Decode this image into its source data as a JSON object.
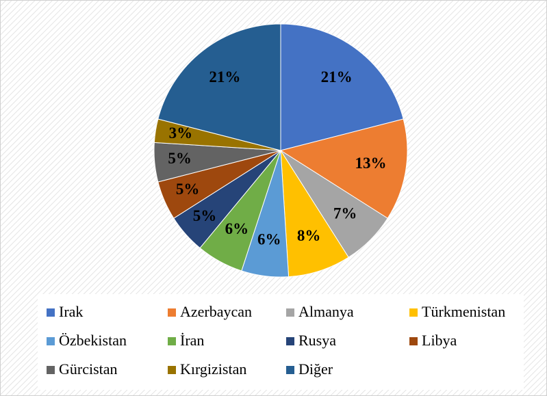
{
  "chart_data": {
    "type": "pie",
    "categories": [
      "Irak",
      "Azerbaycan",
      "Almanya",
      "Türkmenistan",
      "Özbekistan",
      "İran",
      "Rusya",
      "Libya",
      "Gürcistan",
      "Kırgizistan",
      "Diğer"
    ],
    "values": [
      21,
      13,
      7,
      8,
      6,
      6,
      5,
      5,
      5,
      3,
      21
    ],
    "value_labels": [
      "21%",
      "13%",
      "7%",
      "8%",
      "6%",
      "6%",
      "5%",
      "5%",
      "5%",
      "3%",
      "21%"
    ],
    "colors": [
      "#4472c4",
      "#ed7d31",
      "#a5a5a5",
      "#ffc000",
      "#5b9bd5",
      "#70ad47",
      "#264478",
      "#9e480e",
      "#636363",
      "#997300",
      "#255e91"
    ]
  }
}
